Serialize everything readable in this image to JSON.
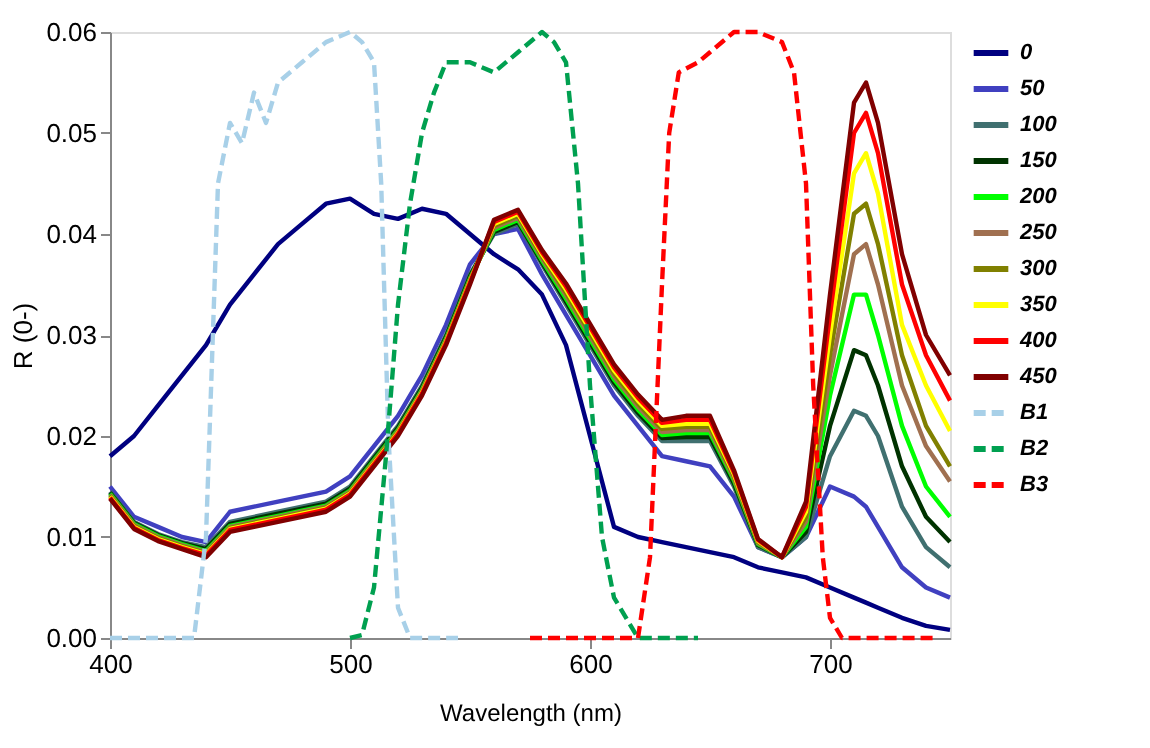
{
  "chart_data": {
    "type": "line",
    "xlabel": "Wavelength (nm)",
    "ylabel": "R (0-)",
    "xlim": [
      400,
      750
    ],
    "ylim": [
      0,
      0.06
    ],
    "xticks": [
      400,
      500,
      600,
      700
    ],
    "yticks": [
      {
        "value": 0,
        "label": "0.00"
      },
      {
        "value": 0.01,
        "label": "0.01"
      },
      {
        "value": 0.02,
        "label": "0.02"
      },
      {
        "value": 0.03,
        "label": "0.03"
      },
      {
        "value": 0.04,
        "label": "0.04"
      },
      {
        "value": 0.05,
        "label": "0.05"
      },
      {
        "value": 0.06,
        "label": "0.06"
      }
    ],
    "grid": false,
    "legend": "right",
    "marker": "none",
    "x": [
      400,
      410,
      420,
      430,
      440,
      450,
      460,
      470,
      480,
      490,
      500,
      510,
      520,
      530,
      540,
      550,
      560,
      570,
      580,
      590,
      600,
      610,
      620,
      630,
      640,
      650,
      660,
      670,
      680,
      690,
      700,
      710,
      715,
      720,
      730,
      740,
      750
    ],
    "series": [
      {
        "name": "0",
        "color": "#000080",
        "line_style": "solid",
        "values": [
          0.018,
          0.02,
          0.023,
          0.026,
          0.029,
          0.033,
          0.036,
          0.039,
          0.041,
          0.043,
          0.0435,
          0.042,
          0.0415,
          0.0425,
          0.042,
          0.04,
          0.038,
          0.0365,
          0.034,
          0.029,
          0.02,
          0.011,
          0.01,
          0.0095,
          0.009,
          0.0085,
          0.008,
          0.007,
          0.0065,
          0.006,
          0.005,
          0.004,
          0.0035,
          0.003,
          0.002,
          0.0012,
          0.0008
        ]
      },
      {
        "name": "50",
        "color": "#4040c0",
        "line_style": "solid",
        "values": [
          0.015,
          0.012,
          0.011,
          0.01,
          0.0095,
          0.0125,
          0.013,
          0.0135,
          0.014,
          0.0145,
          0.016,
          0.019,
          0.022,
          0.026,
          0.031,
          0.037,
          0.04,
          0.0405,
          0.036,
          0.032,
          0.028,
          0.024,
          0.021,
          0.018,
          0.0175,
          0.017,
          0.014,
          0.009,
          0.008,
          0.01,
          0.015,
          0.014,
          0.013,
          0.011,
          0.007,
          0.005,
          0.004
        ]
      },
      {
        "name": "100",
        "color": "#407070",
        "line_style": "solid",
        "values": [
          0.0145,
          0.0115,
          0.0103,
          0.0095,
          0.009,
          0.0115,
          0.012,
          0.0125,
          0.013,
          0.0135,
          0.015,
          0.018,
          0.021,
          0.025,
          0.03,
          0.036,
          0.04,
          0.041,
          0.037,
          0.033,
          0.029,
          0.025,
          0.022,
          0.0195,
          0.0195,
          0.0195,
          0.015,
          0.009,
          0.008,
          0.01,
          0.018,
          0.0225,
          0.022,
          0.02,
          0.013,
          0.009,
          0.007
        ]
      },
      {
        "name": "150",
        "color": "#003300",
        "line_style": "solid",
        "values": [
          0.0144,
          0.0114,
          0.0102,
          0.0094,
          0.0088,
          0.0113,
          0.0118,
          0.0123,
          0.0128,
          0.0133,
          0.0148,
          0.0178,
          0.0208,
          0.0248,
          0.0298,
          0.0358,
          0.0402,
          0.0412,
          0.0372,
          0.0333,
          0.0293,
          0.0253,
          0.0223,
          0.0198,
          0.0199,
          0.0199,
          0.0153,
          0.0092,
          0.008,
          0.0105,
          0.021,
          0.0285,
          0.028,
          0.025,
          0.017,
          0.012,
          0.0095
        ]
      },
      {
        "name": "200",
        "color": "#00ff00",
        "line_style": "solid",
        "values": [
          0.0143,
          0.0113,
          0.0101,
          0.0093,
          0.0086,
          0.0111,
          0.0116,
          0.0121,
          0.0126,
          0.0131,
          0.0146,
          0.0176,
          0.0206,
          0.0246,
          0.0296,
          0.0356,
          0.0404,
          0.0414,
          0.0374,
          0.0336,
          0.0296,
          0.0256,
          0.0226,
          0.0201,
          0.0203,
          0.0203,
          0.0156,
          0.0093,
          0.008,
          0.011,
          0.024,
          0.034,
          0.034,
          0.03,
          0.021,
          0.015,
          0.012
        ]
      },
      {
        "name": "250",
        "color": "#a07050",
        "line_style": "solid",
        "values": [
          0.0142,
          0.0112,
          0.01,
          0.0092,
          0.0085,
          0.011,
          0.0115,
          0.012,
          0.0125,
          0.013,
          0.0145,
          0.0175,
          0.0205,
          0.0245,
          0.0295,
          0.0355,
          0.0406,
          0.0416,
          0.0376,
          0.0339,
          0.0299,
          0.0259,
          0.0229,
          0.0204,
          0.0206,
          0.0206,
          0.0158,
          0.0094,
          0.008,
          0.0115,
          0.026,
          0.038,
          0.039,
          0.035,
          0.025,
          0.019,
          0.0155
        ]
      },
      {
        "name": "300",
        "color": "#808000",
        "line_style": "solid",
        "values": [
          0.0141,
          0.0111,
          0.0099,
          0.0091,
          0.0084,
          0.0109,
          0.0114,
          0.0119,
          0.0124,
          0.0129,
          0.0144,
          0.0174,
          0.0204,
          0.0244,
          0.0294,
          0.0354,
          0.0408,
          0.0418,
          0.0378,
          0.0342,
          0.0302,
          0.0262,
          0.0232,
          0.0207,
          0.0209,
          0.0209,
          0.016,
          0.0095,
          0.008,
          0.012,
          0.028,
          0.042,
          0.043,
          0.039,
          0.028,
          0.021,
          0.017
        ]
      },
      {
        "name": "350",
        "color": "#ffff00",
        "line_style": "solid",
        "values": [
          0.014,
          0.011,
          0.0098,
          0.009,
          0.0083,
          0.0108,
          0.0113,
          0.0118,
          0.0123,
          0.0128,
          0.0143,
          0.0173,
          0.0203,
          0.0243,
          0.0293,
          0.0353,
          0.041,
          0.042,
          0.038,
          0.0345,
          0.0305,
          0.0265,
          0.0235,
          0.021,
          0.0212,
          0.0212,
          0.0162,
          0.0096,
          0.008,
          0.0125,
          0.03,
          0.046,
          0.048,
          0.044,
          0.031,
          0.025,
          0.0205
        ]
      },
      {
        "name": "400",
        "color": "#ff0000",
        "line_style": "solid",
        "values": [
          0.0139,
          0.0109,
          0.0097,
          0.0089,
          0.0082,
          0.0107,
          0.0112,
          0.0117,
          0.0122,
          0.0127,
          0.0142,
          0.0172,
          0.0202,
          0.0242,
          0.0292,
          0.0352,
          0.0412,
          0.0422,
          0.0382,
          0.0348,
          0.0308,
          0.0268,
          0.0238,
          0.0213,
          0.0216,
          0.0216,
          0.0164,
          0.0097,
          0.008,
          0.013,
          0.032,
          0.05,
          0.052,
          0.048,
          0.035,
          0.028,
          0.0235
        ]
      },
      {
        "name": "450",
        "color": "#800000",
        "line_style": "solid",
        "values": [
          0.0138,
          0.0108,
          0.0096,
          0.0088,
          0.008,
          0.0105,
          0.011,
          0.0115,
          0.012,
          0.0125,
          0.014,
          0.017,
          0.02,
          0.024,
          0.029,
          0.035,
          0.0414,
          0.0424,
          0.0384,
          0.0351,
          0.0311,
          0.0271,
          0.0241,
          0.0216,
          0.022,
          0.022,
          0.0166,
          0.0098,
          0.008,
          0.0135,
          0.034,
          0.053,
          0.055,
          0.051,
          0.038,
          0.03,
          0.026
        ]
      },
      {
        "name": "B1",
        "color": "#a8d0e8",
        "line_style": "dashed",
        "x": [
          400,
          435,
          440,
          445,
          450,
          455,
          460,
          465,
          470,
          480,
          490,
          500,
          505,
          510,
          513,
          516,
          520,
          525,
          545
        ],
        "values": [
          0,
          0,
          0.01,
          0.045,
          0.051,
          0.049,
          0.054,
          0.051,
          0.055,
          0.057,
          0.059,
          0.06,
          0.059,
          0.057,
          0.045,
          0.02,
          0.003,
          0,
          0
        ]
      },
      {
        "name": "B2",
        "color": "#00a050",
        "line_style": "dashed",
        "x": [
          500,
          505,
          510,
          515,
          520,
          525,
          530,
          535,
          540,
          550,
          560,
          570,
          580,
          585,
          590,
          595,
          600,
          605,
          610,
          620,
          645
        ],
        "values": [
          0,
          0.0003,
          0.005,
          0.018,
          0.033,
          0.043,
          0.05,
          0.054,
          0.057,
          0.057,
          0.056,
          0.058,
          0.06,
          0.059,
          0.057,
          0.045,
          0.025,
          0.01,
          0.004,
          0,
          0
        ]
      },
      {
        "name": "B3",
        "color": "#ff0000",
        "line_style": "dashed",
        "x": [
          575,
          620,
          625,
          630,
          633,
          637,
          645,
          650,
          660,
          670,
          680,
          685,
          690,
          693,
          697,
          700,
          705,
          745
        ],
        "values": [
          0,
          0,
          0.008,
          0.035,
          0.05,
          0.056,
          0.057,
          0.058,
          0.06,
          0.06,
          0.059,
          0.056,
          0.045,
          0.025,
          0.008,
          0.002,
          0,
          0
        ]
      }
    ]
  }
}
